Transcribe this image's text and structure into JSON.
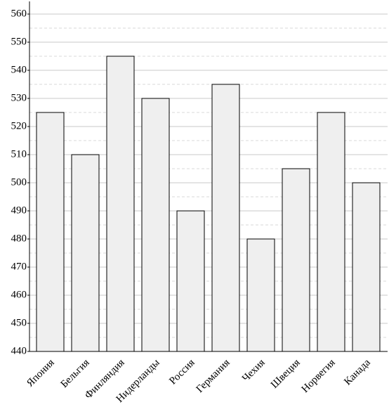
{
  "chart_data": {
    "type": "bar",
    "categories": [
      "Япония",
      "Бельгия",
      "Финляндия",
      "Нидерланды",
      "Россия",
      "Германия",
      "Чехия",
      "Швеция",
      "Норвегия",
      "Канада"
    ],
    "values": [
      525,
      510,
      545,
      530,
      490,
      535,
      480,
      505,
      525,
      500
    ],
    "color": "#efefef",
    "ylim": [
      440,
      565
    ],
    "yticks": [
      440,
      450,
      460,
      470,
      480,
      490,
      500,
      510,
      520,
      530,
      540,
      550,
      560
    ],
    "grid": true
  }
}
